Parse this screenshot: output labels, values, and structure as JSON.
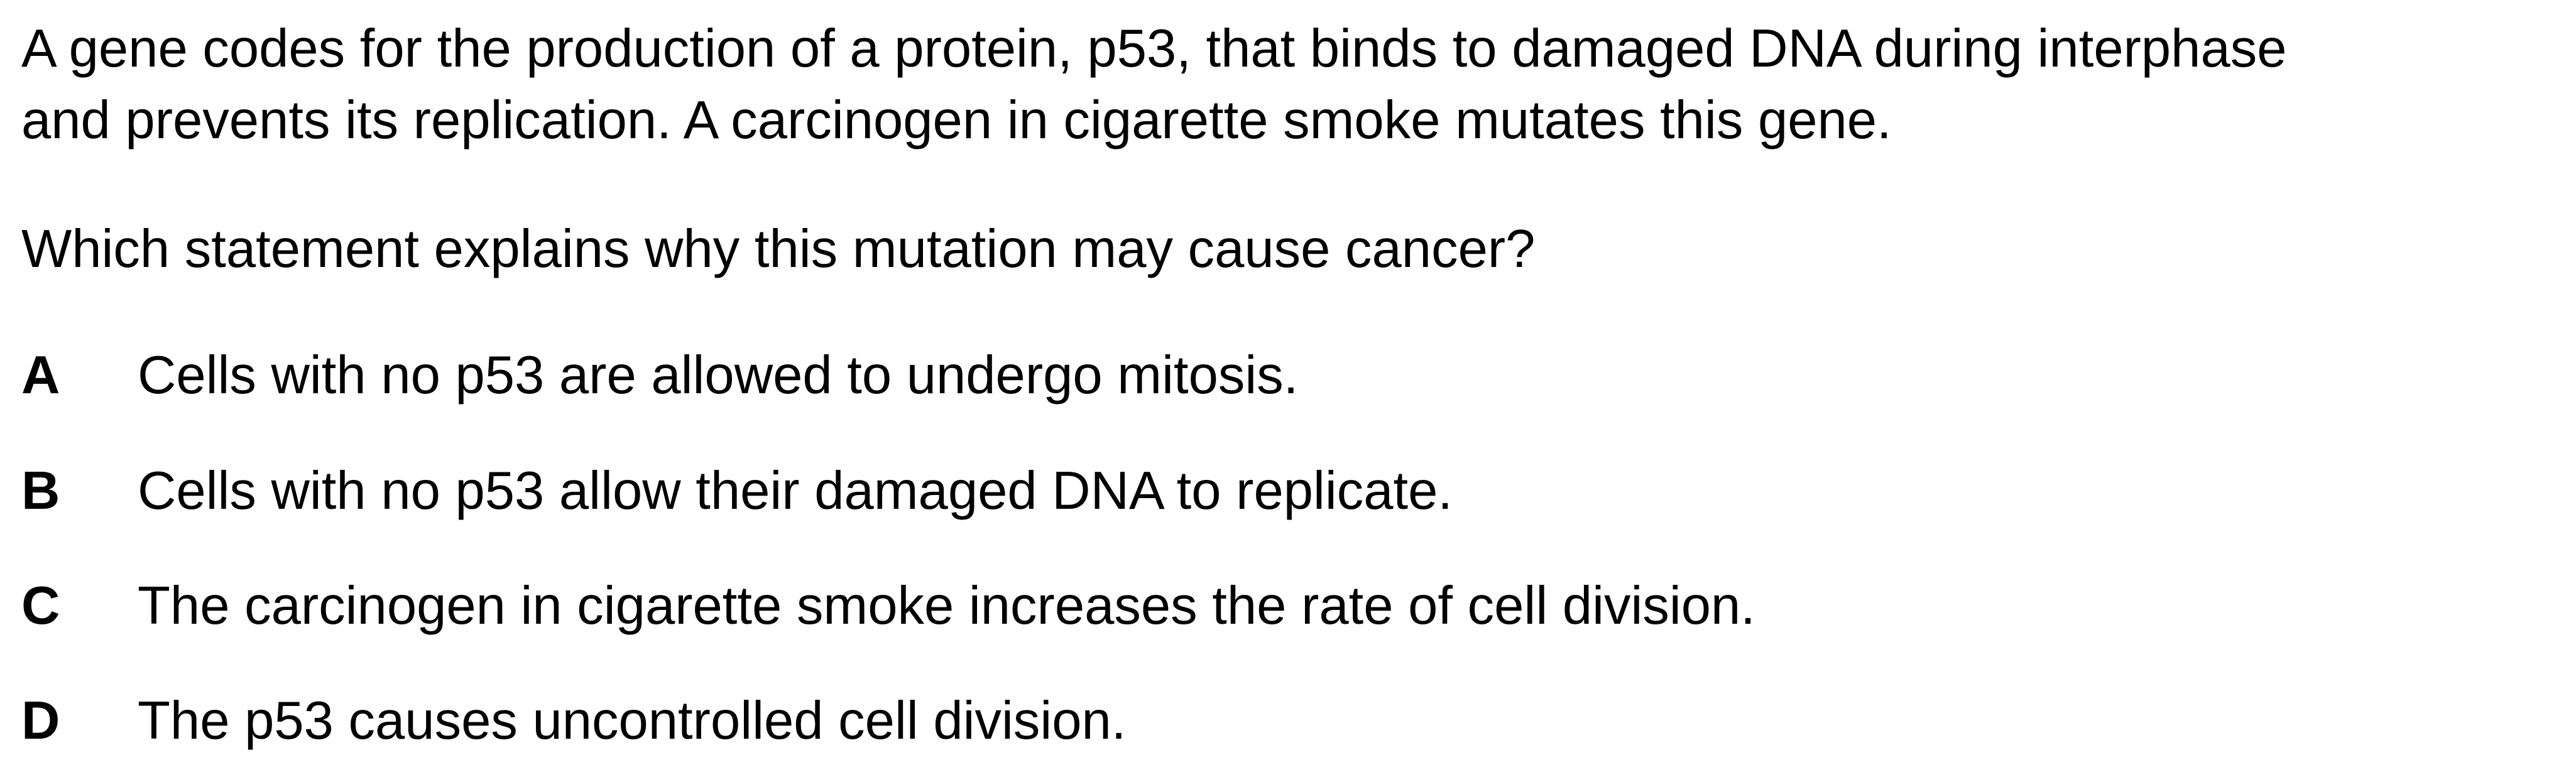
{
  "question": {
    "stem_lines": [
      "A gene codes for the production of a protein, p53, that binds to damaged DNA during interphase",
      "and prevents its replication. A carcinogen in cigarette smoke mutates this gene."
    ],
    "prompt": "Which statement explains why this mutation may cause cancer?",
    "options": [
      {
        "letter": "A",
        "text": "Cells with no p53 are allowed to undergo mitosis."
      },
      {
        "letter": "B",
        "text": "Cells with no p53 allow their damaged DNA to replicate."
      },
      {
        "letter": "C",
        "text": "The carcinogen in cigarette smoke increases the rate of cell division."
      },
      {
        "letter": "D",
        "text": "The p53 causes uncontrolled cell division."
      }
    ]
  }
}
